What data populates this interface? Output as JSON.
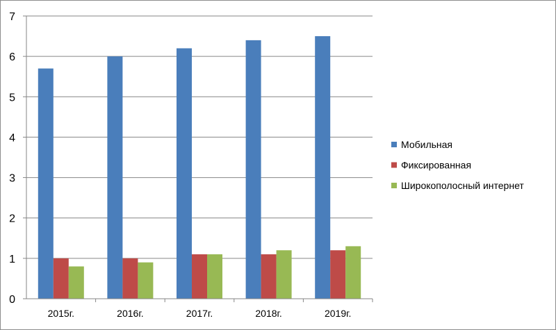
{
  "chart_data": {
    "type": "bar",
    "categories": [
      "2015г.",
      "2016г.",
      "2017г.",
      "2018г.",
      "2019г."
    ],
    "series": [
      {
        "name": "Мобильная",
        "color": "#4a7ebb",
        "values": [
          5.7,
          6.0,
          6.2,
          6.4,
          6.5
        ]
      },
      {
        "name": "Фиксированная",
        "color": "#be4b48",
        "values": [
          1.0,
          1.0,
          1.1,
          1.1,
          1.2
        ]
      },
      {
        "name": "Широкополосный интернет",
        "color": "#98b954",
        "values": [
          0.8,
          0.9,
          1.1,
          1.2,
          1.3
        ]
      }
    ],
    "ylim": [
      0,
      7
    ],
    "yticks": [
      "0",
      "1",
      "2",
      "3",
      "4",
      "5",
      "6",
      "7"
    ],
    "grid": true,
    "legend_position": "right"
  }
}
